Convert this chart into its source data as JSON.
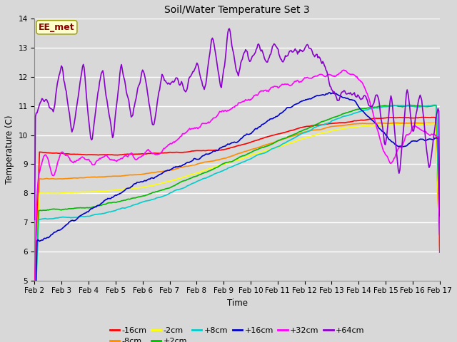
{
  "title": "Soil/Water Temperature Set 3",
  "xlabel": "Time",
  "ylabel": "Temperature (C)",
  "ylim": [
    5.0,
    14.0
  ],
  "yticks": [
    5.0,
    6.0,
    7.0,
    8.0,
    9.0,
    10.0,
    11.0,
    12.0,
    13.0,
    14.0
  ],
  "xtick_labels": [
    "Feb 2",
    "Feb 3",
    "Feb 4",
    "Feb 5",
    "Feb 6",
    "Feb 7",
    "Feb 8",
    "Feb 9",
    "Feb 10",
    "Feb 11",
    "Feb 12",
    "Feb 13",
    "Feb 14",
    "Feb 15",
    "Feb 16",
    "Feb 17"
  ],
  "annotation": "EE_met",
  "annotation_color": "#8B0000",
  "annotation_bg": "#FFFFCC",
  "background_color": "#D8D8D8",
  "plot_bg": "#D8D8D8",
  "grid_color": "#FFFFFF",
  "series_colors": {
    "-16cm": "#FF0000",
    "-8cm": "#FF8C00",
    "-2cm": "#FFFF00",
    "+2cm": "#00BB00",
    "+8cm": "#00CCCC",
    "+16cm": "#0000CC",
    "+32cm": "#FF00FF",
    "+64cm": "#8800CC"
  },
  "lw": 1.2,
  "figsize": [
    6.4,
    4.8
  ],
  "dpi": 100
}
